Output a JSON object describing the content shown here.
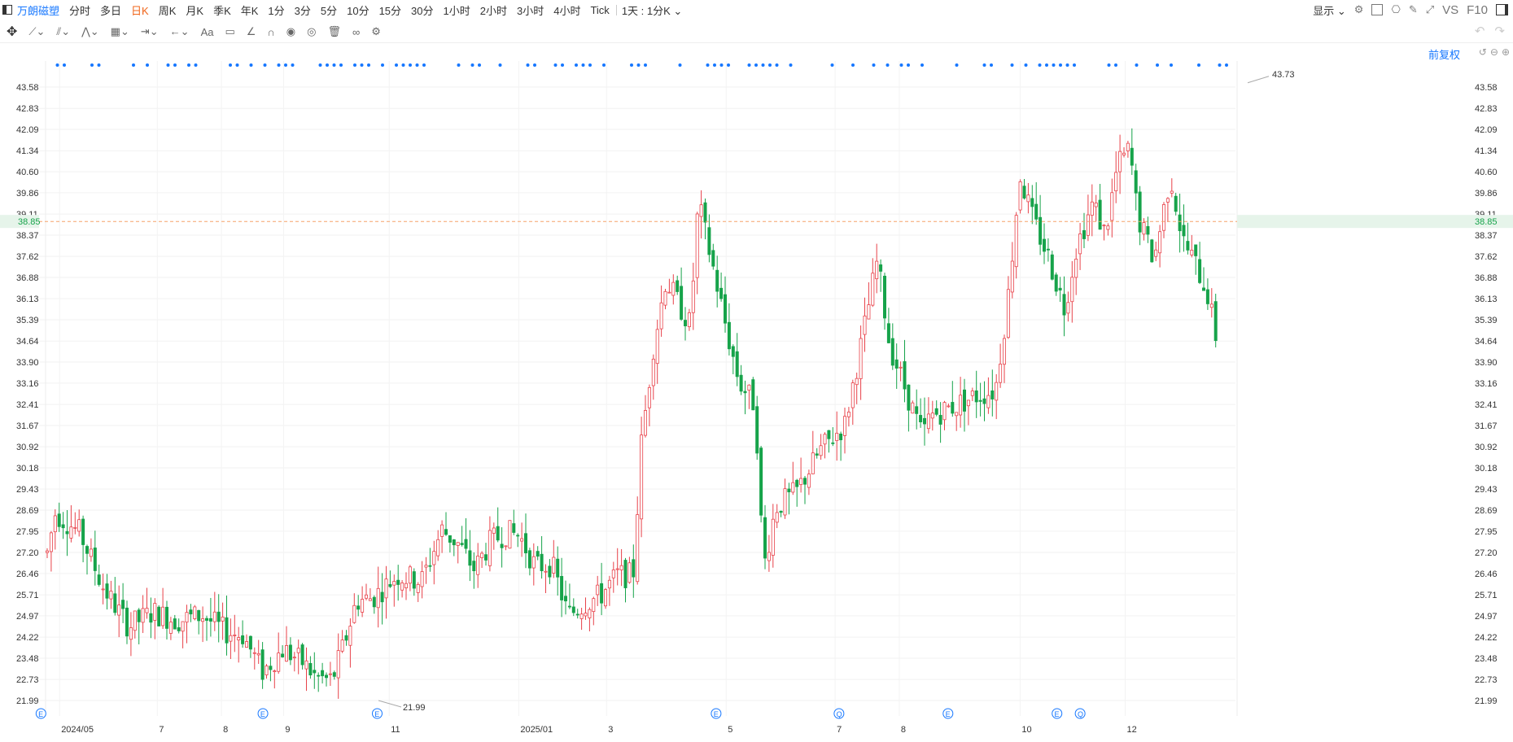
{
  "header": {
    "stock_name": "万朗磁塑",
    "periods": [
      "分时",
      "多日",
      "日K",
      "周K",
      "月K",
      "季K",
      "年K",
      "1分",
      "3分",
      "5分",
      "10分",
      "15分",
      "30分",
      "1小时",
      "2小时",
      "3小时",
      "4小时",
      "Tick"
    ],
    "active_period": "日K",
    "interval_label": "1天 : 1分K",
    "display_label": "显示",
    "vs_label": "VS",
    "f10_label": "F10"
  },
  "chart": {
    "adjust_label": "前复权",
    "current_price": "38.85",
    "price_ticks": [
      "43.58",
      "42.83",
      "42.09",
      "41.34",
      "40.60",
      "39.86",
      "39.11",
      "38.37",
      "37.62",
      "36.88",
      "36.13",
      "35.39",
      "34.64",
      "33.90",
      "33.16",
      "32.41",
      "31.67",
      "30.92",
      "30.18",
      "29.43",
      "28.69",
      "27.95",
      "27.20",
      "26.46",
      "25.71",
      "24.97",
      "24.22",
      "23.48",
      "22.73",
      "21.99"
    ],
    "x_labels": [
      "2024/05",
      "7",
      "8",
      "9",
      "11",
      "2025/01",
      "3",
      "5",
      "7",
      "8",
      "10",
      "12"
    ],
    "high_label": "43.73",
    "low_label": "21.99",
    "event_markers": [
      "E",
      "E",
      "E",
      "E",
      "Q",
      "E",
      "E",
      "Q"
    ],
    "colors": {
      "up": "#e8424a",
      "down": "#16a34a",
      "price_line": "#f5a46a",
      "price_tag": "#e6f4ea",
      "accent": "#1677ff"
    }
  }
}
